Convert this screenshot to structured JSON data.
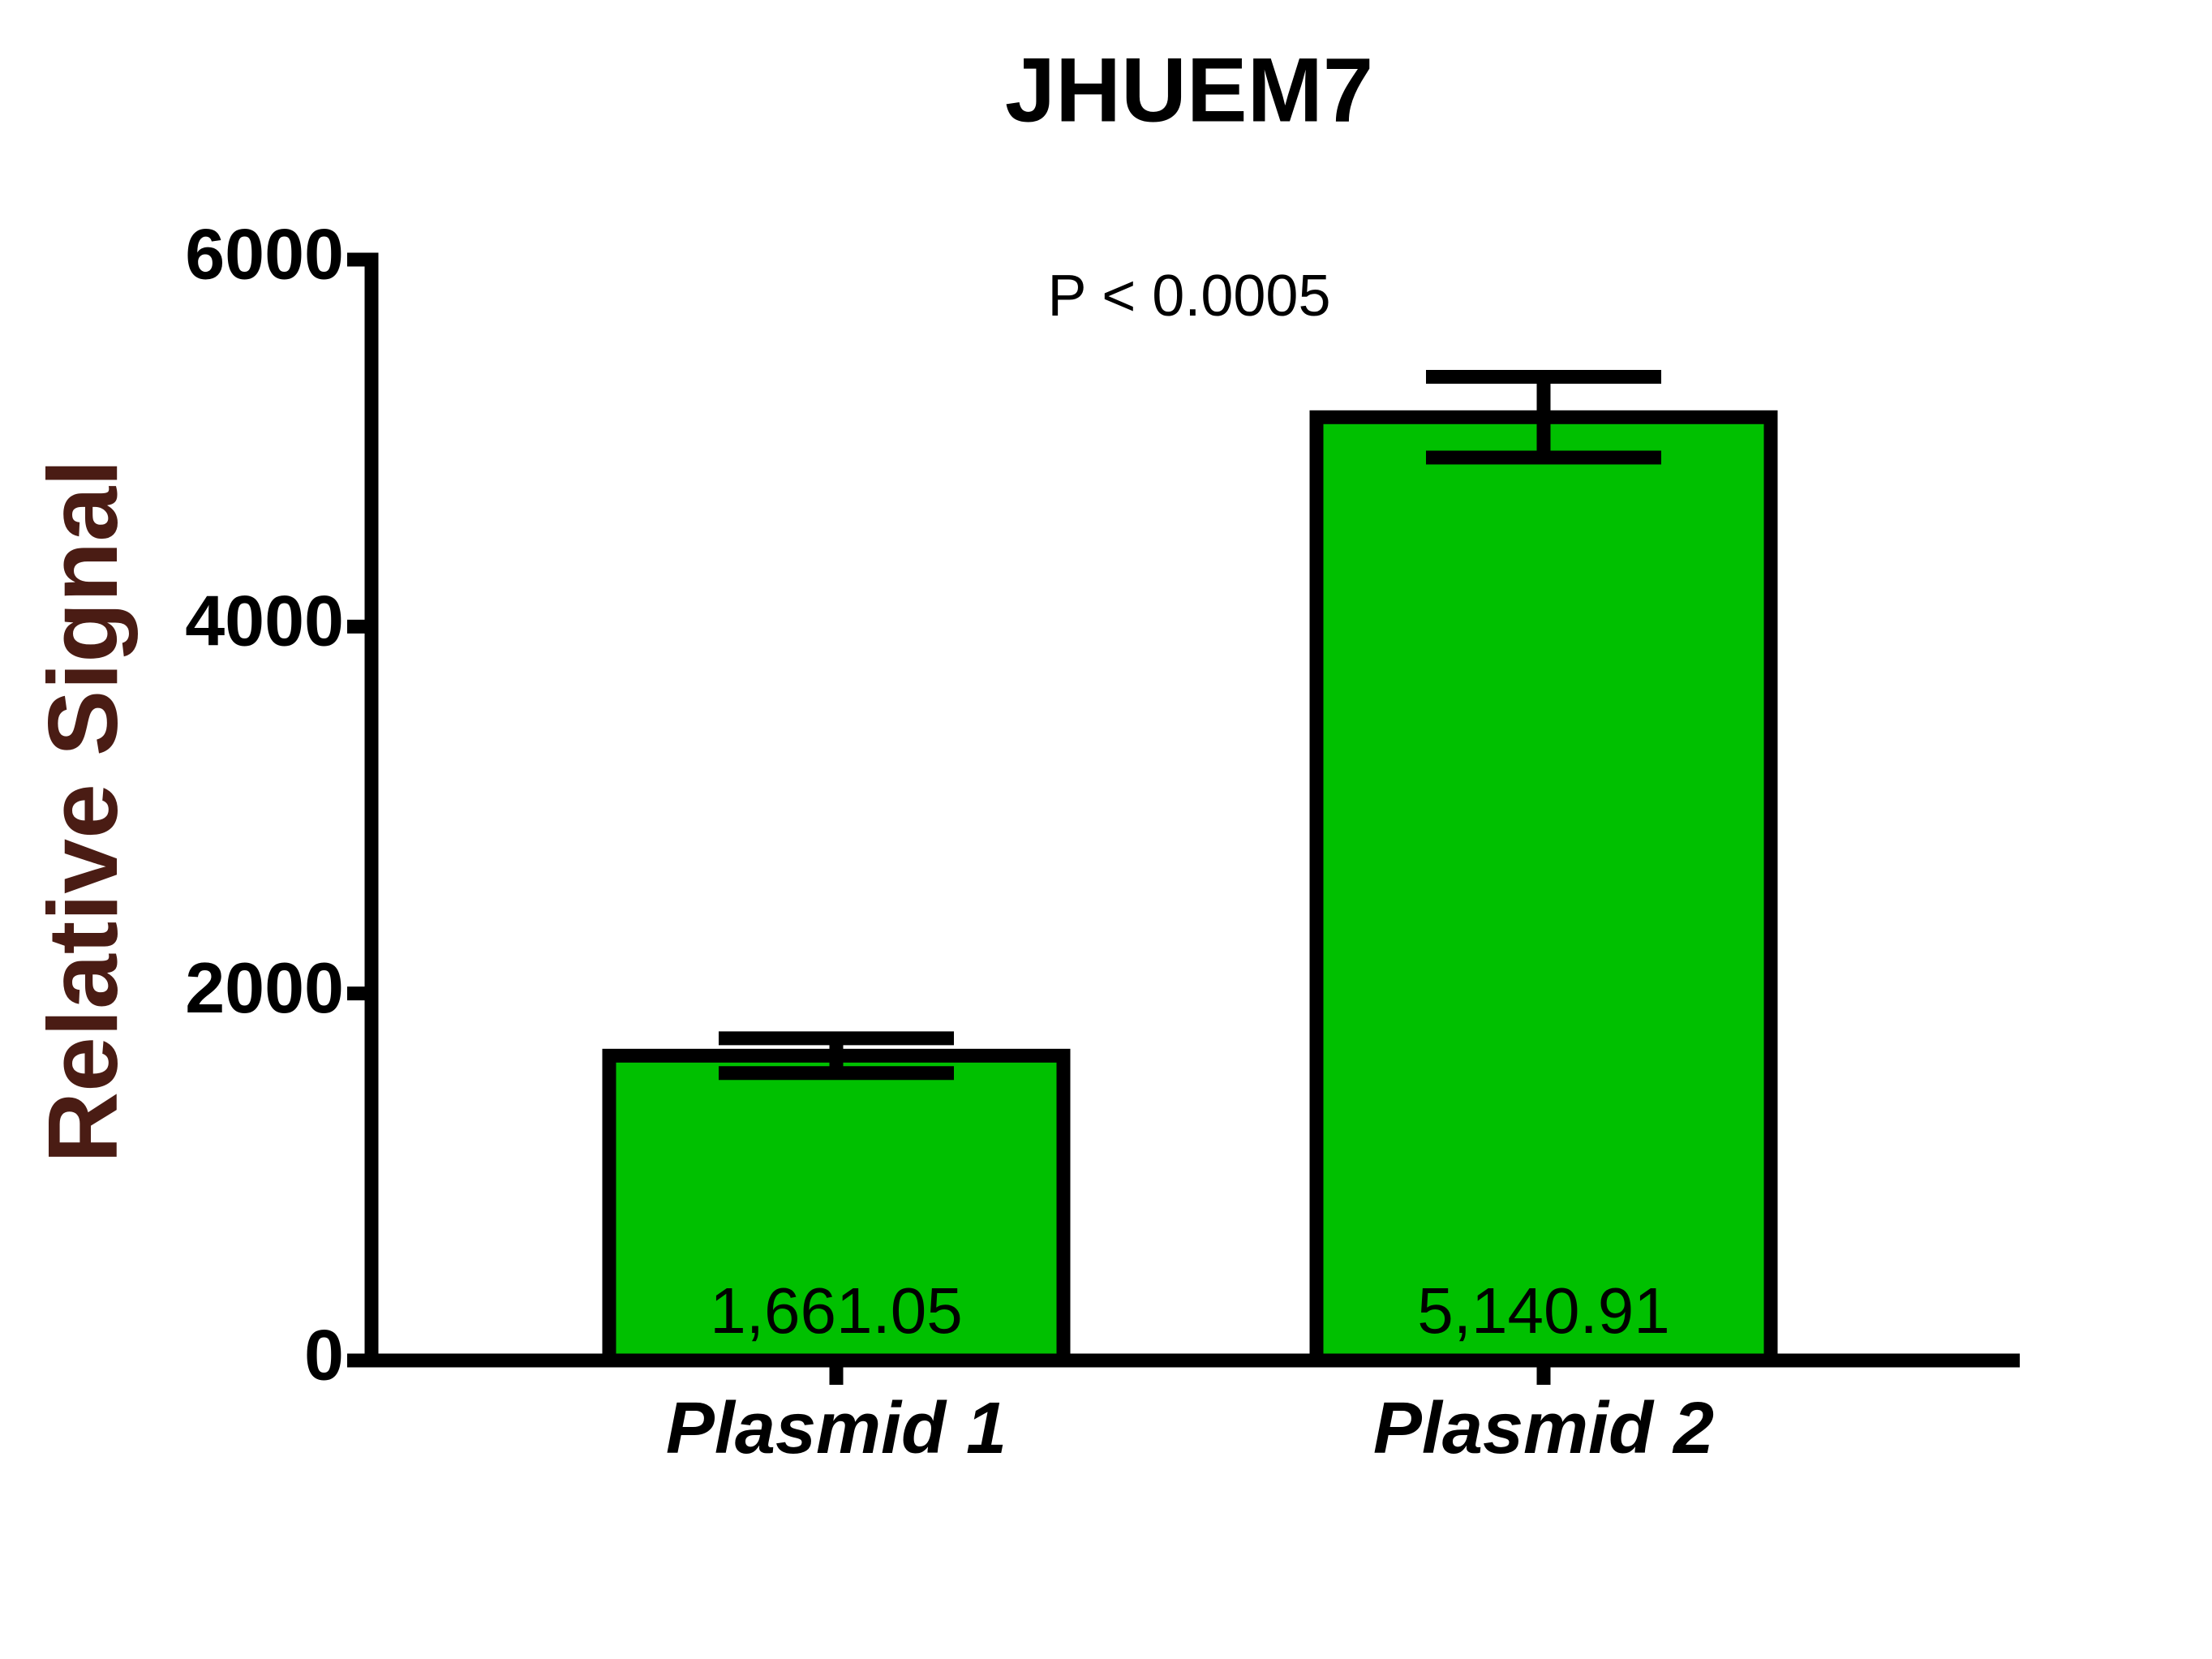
{
  "chart_data": {
    "type": "bar",
    "title": "JHUEM7",
    "annotation": "P < 0.0005",
    "y_label": "Relative Signal",
    "categories": [
      "Plasmid 1",
      "Plasmid 2"
    ],
    "values": [
      1661.05,
      5140.91
    ],
    "value_labels": [
      "1,661.05",
      "5,140.91"
    ],
    "errors": [
      95,
      220
    ],
    "color": "#00c000",
    "ylim": [
      0,
      6000
    ],
    "yticks": [
      0,
      2000,
      4000,
      6000
    ]
  }
}
